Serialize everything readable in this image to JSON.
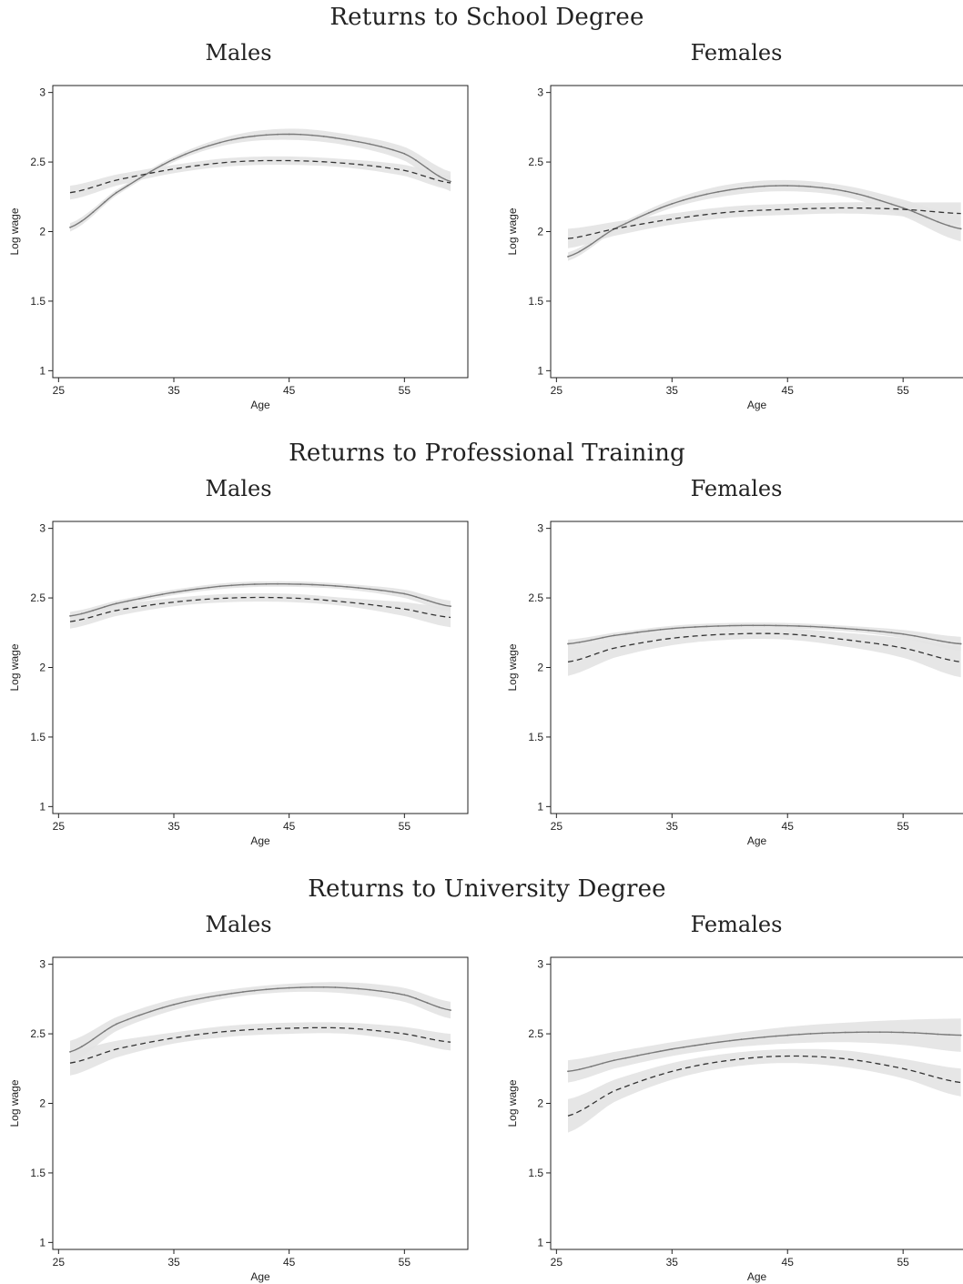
{
  "sections": [
    {
      "title": "Returns to School Degree"
    },
    {
      "title": "Returns to Professional Training"
    },
    {
      "title": "Returns to University Degree"
    }
  ],
  "panel_titles": {
    "males": "Males",
    "females": "Females"
  },
  "colors": {
    "band": "#e3e3e3",
    "solid": "#7a7a7a",
    "dashed": "#333333",
    "axis": "#222222"
  },
  "chart_data": [
    {
      "type": "line",
      "section": "Returns to School Degree",
      "title": "Males",
      "xlabel": "Age",
      "ylabel": "Log wage",
      "xticks": [
        25,
        35,
        45,
        55
      ],
      "yticks": [
        1,
        1.5,
        2,
        2.5,
        3
      ],
      "xlim": [
        24.5,
        60.5
      ],
      "ylim": [
        0.95,
        3.05
      ],
      "series": [
        {
          "style": "solid",
          "x": [
            26,
            30,
            35,
            40,
            45,
            50,
            55,
            59
          ],
          "y": [
            2.03,
            2.28,
            2.52,
            2.66,
            2.7,
            2.66,
            2.56,
            2.36
          ],
          "band": [
            0.03,
            0.02,
            0.02,
            0.03,
            0.04,
            0.04,
            0.05,
            0.07
          ]
        },
        {
          "style": "dashed",
          "x": [
            26,
            30,
            35,
            40,
            45,
            50,
            55,
            59
          ],
          "y": [
            2.28,
            2.37,
            2.45,
            2.5,
            2.51,
            2.49,
            2.44,
            2.35
          ],
          "band": [
            0.05,
            0.04,
            0.03,
            0.03,
            0.03,
            0.03,
            0.04,
            0.05
          ]
        }
      ]
    },
    {
      "type": "line",
      "section": "Returns to School Degree",
      "title": "Females",
      "xlabel": "Age",
      "ylabel": "Log wage",
      "xticks": [
        25,
        35,
        45,
        55
      ],
      "yticks": [
        1,
        1.5,
        2,
        2.5,
        3
      ],
      "xlim": [
        24.5,
        60.5
      ],
      "ylim": [
        0.95,
        3.05
      ],
      "series": [
        {
          "style": "solid",
          "x": [
            26,
            30,
            35,
            40,
            45,
            50,
            55,
            60
          ],
          "y": [
            1.82,
            2.02,
            2.2,
            2.3,
            2.33,
            2.29,
            2.17,
            2.02
          ],
          "band": [
            0.03,
            0.02,
            0.03,
            0.04,
            0.04,
            0.04,
            0.06,
            0.09
          ]
        },
        {
          "style": "dashed",
          "x": [
            26,
            30,
            35,
            40,
            45,
            50,
            55,
            60
          ],
          "y": [
            1.95,
            2.02,
            2.09,
            2.14,
            2.16,
            2.17,
            2.16,
            2.13
          ],
          "band": [
            0.07,
            0.05,
            0.04,
            0.04,
            0.04,
            0.04,
            0.05,
            0.08
          ]
        }
      ]
    },
    {
      "type": "line",
      "section": "Returns to Professional Training",
      "title": "Males",
      "xlabel": "Age",
      "ylabel": "Log wage",
      "xticks": [
        25,
        35,
        45,
        55
      ],
      "yticks": [
        1,
        1.5,
        2,
        2.5,
        3
      ],
      "xlim": [
        24.5,
        60.5
      ],
      "ylim": [
        0.95,
        3.05
      ],
      "series": [
        {
          "style": "solid",
          "x": [
            26,
            30,
            35,
            40,
            45,
            50,
            55,
            59
          ],
          "y": [
            2.37,
            2.46,
            2.54,
            2.59,
            2.6,
            2.58,
            2.53,
            2.44
          ],
          "band": [
            0.03,
            0.02,
            0.02,
            0.02,
            0.02,
            0.02,
            0.03,
            0.04
          ]
        },
        {
          "style": "dashed",
          "x": [
            26,
            30,
            35,
            40,
            45,
            50,
            55,
            59
          ],
          "y": [
            2.33,
            2.41,
            2.47,
            2.5,
            2.5,
            2.47,
            2.42,
            2.36
          ],
          "band": [
            0.05,
            0.04,
            0.03,
            0.03,
            0.03,
            0.03,
            0.05,
            0.07
          ]
        }
      ]
    },
    {
      "type": "line",
      "section": "Returns to Professional Training",
      "title": "Females",
      "xlabel": "Age",
      "ylabel": "Log wage",
      "xticks": [
        25,
        35,
        45,
        55
      ],
      "yticks": [
        1,
        1.5,
        2,
        2.5,
        3
      ],
      "xlim": [
        24.5,
        60.5
      ],
      "ylim": [
        0.95,
        3.05
      ],
      "series": [
        {
          "style": "solid",
          "x": [
            26,
            30,
            35,
            40,
            45,
            50,
            55,
            60
          ],
          "y": [
            2.17,
            2.23,
            2.28,
            2.3,
            2.3,
            2.28,
            2.24,
            2.17
          ],
          "band": [
            0.03,
            0.02,
            0.02,
            0.02,
            0.02,
            0.02,
            0.03,
            0.05
          ]
        },
        {
          "style": "dashed",
          "x": [
            26,
            30,
            35,
            40,
            45,
            50,
            55,
            60
          ],
          "y": [
            2.04,
            2.14,
            2.21,
            2.24,
            2.24,
            2.2,
            2.14,
            2.04
          ],
          "band": [
            0.1,
            0.07,
            0.05,
            0.04,
            0.04,
            0.05,
            0.07,
            0.11
          ]
        }
      ]
    },
    {
      "type": "line",
      "section": "Returns to University Degree",
      "title": "Males",
      "xlabel": "Age",
      "ylabel": "Log wage",
      "xticks": [
        25,
        35,
        45,
        55
      ],
      "yticks": [
        1,
        1.5,
        2,
        2.5,
        3
      ],
      "xlim": [
        24.5,
        60.5
      ],
      "ylim": [
        0.95,
        3.05
      ],
      "series": [
        {
          "style": "solid",
          "x": [
            26,
            30,
            35,
            40,
            45,
            50,
            55,
            59
          ],
          "y": [
            2.37,
            2.57,
            2.71,
            2.79,
            2.83,
            2.83,
            2.78,
            2.67
          ],
          "band": [
            0.08,
            0.05,
            0.04,
            0.03,
            0.03,
            0.04,
            0.05,
            0.06
          ]
        },
        {
          "style": "dashed",
          "x": [
            26,
            30,
            35,
            40,
            45,
            50,
            55,
            59
          ],
          "y": [
            2.29,
            2.39,
            2.47,
            2.52,
            2.54,
            2.54,
            2.5,
            2.44
          ],
          "band": [
            0.09,
            0.06,
            0.04,
            0.04,
            0.04,
            0.04,
            0.05,
            0.06
          ]
        }
      ]
    },
    {
      "type": "line",
      "section": "Returns to University Degree",
      "title": "Females",
      "xlabel": "Age",
      "ylabel": "Log wage",
      "xticks": [
        25,
        35,
        45,
        55
      ],
      "yticks": [
        1,
        1.5,
        2,
        2.5,
        3
      ],
      "xlim": [
        24.5,
        60.5
      ],
      "ylim": [
        0.95,
        3.05
      ],
      "series": [
        {
          "style": "solid",
          "x": [
            26,
            30,
            35,
            40,
            45,
            50,
            55,
            60
          ],
          "y": [
            2.23,
            2.31,
            2.39,
            2.45,
            2.49,
            2.51,
            2.51,
            2.49
          ],
          "band": [
            0.08,
            0.06,
            0.05,
            0.05,
            0.06,
            0.07,
            0.09,
            0.12
          ]
        },
        {
          "style": "dashed",
          "x": [
            26,
            30,
            35,
            40,
            45,
            50,
            55,
            60
          ],
          "y": [
            1.91,
            2.09,
            2.23,
            2.31,
            2.34,
            2.32,
            2.25,
            2.15
          ],
          "band": [
            0.12,
            0.08,
            0.06,
            0.05,
            0.05,
            0.06,
            0.07,
            0.1
          ]
        }
      ]
    }
  ]
}
